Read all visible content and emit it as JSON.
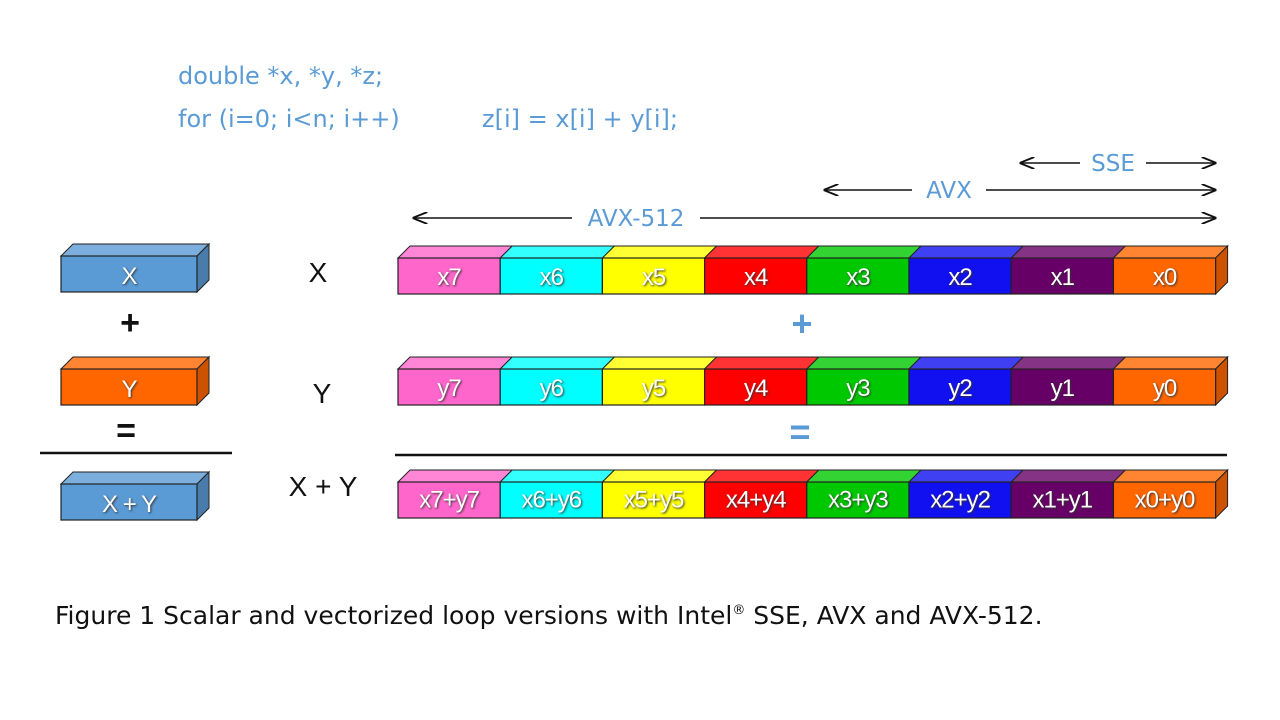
{
  "code": {
    "line1": "double *x, *y, *z;",
    "line2a": "for (i=0;  i<n;  i++)",
    "line2b": "z[i] = x[i] + y[i];"
  },
  "scalar": {
    "x_label": "X",
    "plus": "+",
    "y_label": "Y",
    "equals": "=",
    "sum_label": "X + Y"
  },
  "row_labels": {
    "x": "X",
    "y": "Y",
    "sum": "X + Y"
  },
  "vector": {
    "plus": "+",
    "equals": "=",
    "x_cells": [
      "x7",
      "x6",
      "x5",
      "x4",
      "x3",
      "x2",
      "x1",
      "x0"
    ],
    "y_cells": [
      "y7",
      "y6",
      "y5",
      "y4",
      "y3",
      "y2",
      "y1",
      "y0"
    ],
    "sum_cells": [
      "x7+y7",
      "x6+y6",
      "x5+y5",
      "x4+y4",
      "x3+y3",
      "x2+y2",
      "x1+y1",
      "x0+y0"
    ],
    "cell_colors": [
      "#ff66cc",
      "#00ffff",
      "#ffff00",
      "#ff0000",
      "#00c800",
      "#1010f0",
      "#660066",
      "#ff6600"
    ]
  },
  "widths": {
    "sse": "SSE",
    "avx": "AVX",
    "avx512": "AVX-512"
  },
  "caption": {
    "prefix": "Figure 1    Scalar and vectorized loop versions with Intel",
    "reg": "®",
    "suffix": " SSE, AVX and AVX-512."
  },
  "colors": {
    "accent": "#5b9bd5",
    "scalar_x": "#5b9bd5",
    "scalar_y": "#ff6600"
  }
}
